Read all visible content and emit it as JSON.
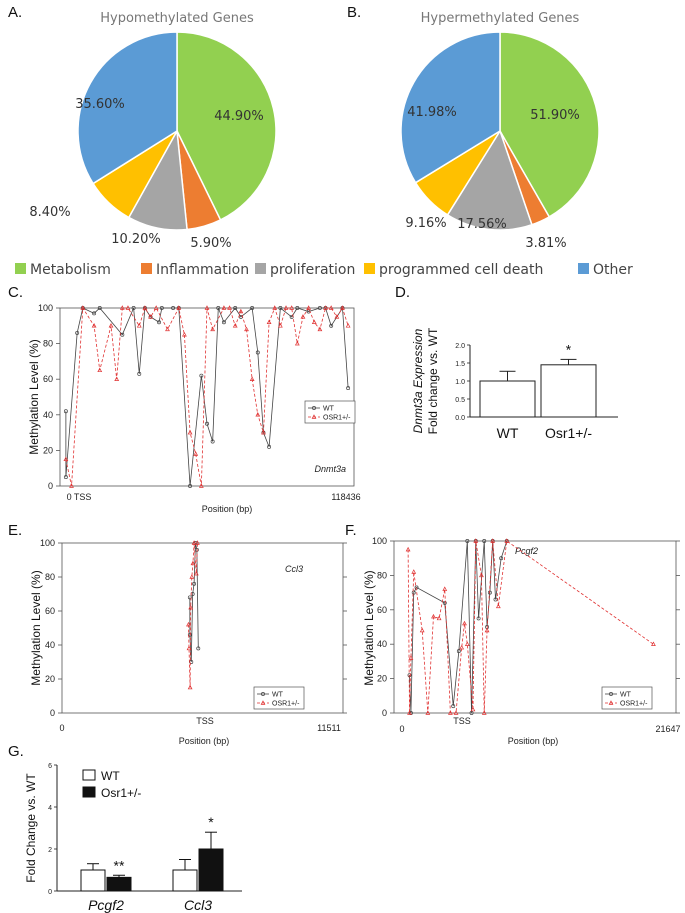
{
  "panels": {
    "A": "A.",
    "B": "B.",
    "C": "C.",
    "D": "D.",
    "E": "E.",
    "F": "F.",
    "G": "G."
  },
  "legend_categories": [
    {
      "label": "Metabolism",
      "color": "#92d050"
    },
    {
      "label": "Inflammation",
      "color": "#ed7d31"
    },
    {
      "label": "proliferation",
      "color": "#a5a5a5"
    },
    {
      "label": "programmed cell death",
      "color": "#ffc000"
    },
    {
      "label": "Other",
      "color": "#5b9bd5"
    }
  ],
  "colors": {
    "wt": "#444444",
    "osr": "#e03030"
  },
  "chart_data": [
    {
      "id": "A",
      "type": "pie",
      "title": "Hypomethylated Genes",
      "categories": [
        "Metabolism",
        "Inflammation",
        "proliferation",
        "programmed cell death",
        "Other"
      ],
      "values": [
        44.9,
        5.9,
        10.2,
        8.4,
        35.6
      ],
      "labels": [
        "44.90%",
        "5.90%",
        "10.20%",
        "8.40%",
        "35.60%"
      ]
    },
    {
      "id": "B",
      "type": "pie",
      "title": "Hypermethylated Genes",
      "categories": [
        "Metabolism",
        "Inflammation",
        "proliferation",
        "programmed cell death",
        "Other"
      ],
      "values": [
        51.9,
        3.81,
        17.56,
        9.16,
        41.98
      ],
      "labels": [
        "51.90%",
        "3.81%",
        "17.56%",
        "9.16%",
        "41.98%"
      ]
    },
    {
      "id": "C",
      "type": "line",
      "gene": "Dnmt3a",
      "xlabel": "Position (bp)",
      "ylabel": "Methylation Level (%)",
      "x_ticks": [
        "0 TSS",
        "118436"
      ],
      "ylim": [
        0,
        100
      ],
      "y_ticks": [
        0,
        20,
        40,
        60,
        80,
        100
      ],
      "legend": [
        "WT",
        "OSR1+/-"
      ],
      "series": [
        {
          "name": "WT",
          "x": [
            0.0,
            0.0,
            0.04,
            0.06,
            0.1,
            0.12,
            0.2,
            0.24,
            0.26,
            0.28,
            0.3,
            0.33,
            0.34,
            0.38,
            0.4,
            0.44,
            0.48,
            0.5,
            0.52,
            0.54,
            0.56,
            0.6,
            0.62,
            0.66,
            0.68,
            0.7,
            0.72,
            0.76,
            0.8,
            0.82,
            0.86,
            0.9,
            0.92,
            0.94,
            0.98,
            1.0
          ],
          "y": [
            42,
            5,
            86,
            100,
            97,
            100,
            85,
            100,
            63,
            100,
            95,
            92,
            100,
            100,
            100,
            0,
            62,
            35,
            25,
            100,
            92,
            100,
            95,
            100,
            75,
            30,
            22,
            100,
            95,
            100,
            98,
            100,
            100,
            90,
            100,
            55
          ]
        },
        {
          "name": "OSR1+/-",
          "x": [
            0.0,
            0.02,
            0.06,
            0.1,
            0.12,
            0.16,
            0.18,
            0.2,
            0.22,
            0.26,
            0.28,
            0.3,
            0.32,
            0.36,
            0.4,
            0.42,
            0.44,
            0.46,
            0.48,
            0.5,
            0.52,
            0.56,
            0.58,
            0.6,
            0.62,
            0.64,
            0.66,
            0.68,
            0.7,
            0.72,
            0.74,
            0.76,
            0.78,
            0.8,
            0.82,
            0.84,
            0.86,
            0.88,
            0.9,
            0.92,
            0.94,
            0.96,
            0.98,
            1.0
          ],
          "y": [
            15,
            0,
            100,
            90,
            65,
            90,
            60,
            100,
            100,
            90,
            100,
            95,
            100,
            88,
            100,
            85,
            30,
            18,
            0,
            100,
            88,
            100,
            100,
            90,
            98,
            88,
            60,
            40,
            30,
            92,
            100,
            90,
            100,
            100,
            80,
            95,
            100,
            92,
            88,
            100,
            100,
            95,
            100,
            90
          ]
        }
      ]
    },
    {
      "id": "D",
      "type": "bar",
      "title": "",
      "categories": [
        "WT",
        "Osr1+/-"
      ],
      "values": [
        1.0,
        1.45
      ],
      "errors": [
        0.27,
        0.15
      ],
      "ylabel": "Dnmt3a Expression",
      "ylabel2": "Fold change vs. WT",
      "ylim": [
        0,
        2.0
      ],
      "y_ticks": [
        "0.0",
        "0.5",
        "1.0",
        "1.5",
        "2.0"
      ],
      "significance": [
        "",
        "*"
      ]
    },
    {
      "id": "E",
      "type": "line",
      "gene": "Ccl3",
      "xlabel": "Position (bp)",
      "ylabel": "Methylation Level (%)",
      "x_ticks": [
        "0",
        "TSS",
        "11511"
      ],
      "ylim": [
        0,
        100
      ],
      "y_ticks": [
        0,
        20,
        40,
        60,
        80,
        100
      ],
      "legend": [
        "WT",
        "OSR1+/-"
      ],
      "series": [
        {
          "name": "WT",
          "x": [
            0.455,
            0.455,
            0.46,
            0.465,
            0.47,
            0.475,
            0.48,
            0.485
          ],
          "y": [
            68,
            46,
            30,
            70,
            76,
            100,
            96,
            38
          ]
        },
        {
          "name": "OSR1+/-",
          "x": [
            0.45,
            0.452,
            0.456,
            0.458,
            0.462,
            0.466,
            0.47,
            0.478,
            0.482
          ],
          "y": [
            52,
            38,
            15,
            62,
            80,
            88,
            100,
            82,
            100
          ]
        }
      ]
    },
    {
      "id": "F",
      "type": "line",
      "gene": "Pcgf2",
      "xlabel": "Position (bp)",
      "ylabel": "Methylation Level (%)",
      "x_ticks": [
        "0",
        "TSS",
        "21647"
      ],
      "ylim": [
        0,
        100
      ],
      "y_ticks": [
        0,
        20,
        40,
        60,
        80,
        100
      ],
      "legend": [
        "WT",
        "OSR1+/-"
      ],
      "series": [
        {
          "name": "WT",
          "x": [
            0.055,
            0.06,
            0.07,
            0.08,
            0.18,
            0.21,
            0.23,
            0.26,
            0.275,
            0.29,
            0.3,
            0.32,
            0.33,
            0.34,
            0.35,
            0.36,
            0.38,
            0.4
          ],
          "y": [
            22,
            0,
            70,
            73,
            64,
            4,
            36,
            100,
            0,
            100,
            55,
            100,
            50,
            70,
            100,
            66,
            90,
            100
          ]
        },
        {
          "name": "OSR1+/-",
          "x": [
            0.05,
            0.055,
            0.06,
            0.07,
            0.1,
            0.12,
            0.14,
            0.16,
            0.18,
            0.2,
            0.22,
            0.24,
            0.25,
            0.26,
            0.28,
            0.29,
            0.31,
            0.32,
            0.33,
            0.35,
            0.37,
            0.4,
            0.92
          ],
          "y": [
            95,
            0,
            32,
            82,
            48,
            0,
            56,
            55,
            72,
            0,
            0,
            38,
            52,
            40,
            2,
            100,
            80,
            0,
            48,
            100,
            62,
            100,
            40
          ]
        }
      ]
    },
    {
      "id": "G",
      "type": "bar",
      "title": "",
      "categories": [
        "Pcgf2",
        "Ccl3"
      ],
      "series": [
        {
          "name": "WT",
          "values": [
            1.0,
            1.0
          ],
          "errors": [
            0.3,
            0.5
          ]
        },
        {
          "name": "Osr1+/-",
          "values": [
            0.65,
            2.0
          ],
          "errors": [
            0.1,
            0.8
          ]
        }
      ],
      "ylabel": "Fold Change vs. WT",
      "ylim": [
        0,
        6
      ],
      "y_ticks": [
        0,
        2,
        4,
        6
      ],
      "significance": [
        "**",
        "*"
      ],
      "legend": [
        "WT",
        "Osr1+/-"
      ]
    }
  ]
}
